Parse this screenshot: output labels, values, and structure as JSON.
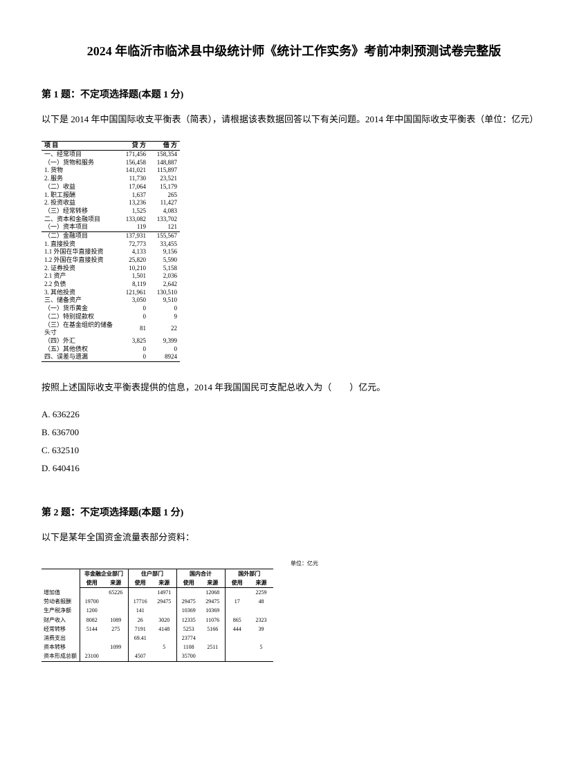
{
  "title": "2024 年临沂市临沭县中级统计师《统计工作实务》考前冲刺预测试卷完整版",
  "q1": {
    "header": "第 1 题：不定项选择题(本题 1 分)",
    "text": "以下是 2014 年中国国际收支平衡表（简表），请根据该表数据回答以下有关问题。2014 年中国国际收支平衡表（单位：亿元）",
    "table": {
      "headers": [
        "项 目",
        "贷 方",
        "借 方"
      ],
      "rows": [
        [
          "一、经常项目",
          "171,456",
          "158,354"
        ],
        [
          "（一）货物和服务",
          "156,458",
          "148,887"
        ],
        [
          "1. 货物",
          "141,021",
          "115,897"
        ],
        [
          "2. 服务",
          "11,730",
          "23,521"
        ],
        [
          "（二）收益",
          "17,064",
          "15,179"
        ],
        [
          "1. 职工报酬",
          "1,637",
          "265"
        ],
        [
          "2. 投资收益",
          "13,236",
          "11,427"
        ],
        [
          "（三）经常转移",
          "1,525",
          "4,083"
        ],
        [
          "二、资本和金融项目",
          "133,082",
          "133,702"
        ],
        [
          "（一）资本项目",
          "119",
          "121"
        ],
        [
          "（二）金融项目",
          "137,931",
          "155,567"
        ],
        [
          "1. 直接投资",
          "72,773",
          "33,455"
        ],
        [
          "1.1 外国在华直接投资",
          "4,133",
          "9,156"
        ],
        [
          "1.2 外国在华直接投资",
          "25,820",
          "5,590"
        ],
        [
          "2. 证券投资",
          "10,210",
          "5,158"
        ],
        [
          "2.1 资产",
          "1,501",
          "2,036"
        ],
        [
          "2.2 负债",
          "8,119",
          "2,642"
        ],
        [
          "3. 其他投资",
          "121,961",
          "130,510"
        ],
        [
          "三、储备资产",
          "3,050",
          "9,510"
        ],
        [
          "（一）货币黄金",
          "0",
          "0"
        ],
        [
          "（二）特别提款权",
          "0",
          "9"
        ],
        [
          "（三）在基金组织的储备头寸",
          "81",
          "22"
        ],
        [
          "（四）外汇",
          "3,825",
          "9,399"
        ],
        [
          "（五）其他债权",
          "0",
          "0"
        ],
        [
          "四、误差与遗漏",
          "0",
          "8924"
        ]
      ]
    },
    "followup": "按照上述国际收支平衡表提供的信息，2014 年我国国民可支配总收入为（　　）亿元。",
    "options": {
      "a": "A. 636226",
      "b": "B. 636700",
      "c": "C. 632510",
      "d": "D. 640416"
    }
  },
  "q2": {
    "header": "第 2 题：不定项选择题(本题 1 分)",
    "text": "以下是某年全国资金流量表部分资料：",
    "table": {
      "unit": "单位：亿元",
      "groupHeaders": [
        "",
        "非金融企业部门",
        "住户部门",
        "国内合计",
        "国外部门"
      ],
      "subHeaders": [
        "",
        "使用",
        "来源",
        "使用",
        "来源",
        "使用",
        "来源",
        "使用",
        "来源"
      ],
      "rows": [
        [
          "增加值",
          "",
          "65226",
          "",
          "14971",
          "",
          "12068",
          "",
          "2259"
        ],
        [
          "劳动者报酬",
          "19700",
          "",
          "17716",
          "29475",
          "29475",
          "29475",
          "17",
          "48"
        ],
        [
          "生产税净额",
          "1200",
          "",
          "141",
          "",
          "10369",
          "10369",
          "",
          ""
        ],
        [
          "财产收入",
          "8082",
          "1089",
          "26",
          "3020",
          "12335",
          "11076",
          "865",
          "2323"
        ],
        [
          "经常转移",
          "5144",
          "275",
          "7191",
          "4148",
          "5253",
          "5166",
          "444",
          "39"
        ],
        [
          "消费支出",
          "",
          "",
          "69.41",
          "",
          "23774",
          "",
          "",
          ""
        ],
        [
          "资本转移",
          "",
          "1099",
          "",
          "5",
          "1108",
          "2511",
          "",
          "5"
        ],
        [
          "资本形成总额",
          "23100",
          "",
          "4507",
          "",
          "35700",
          "",
          "",
          ""
        ]
      ]
    }
  }
}
